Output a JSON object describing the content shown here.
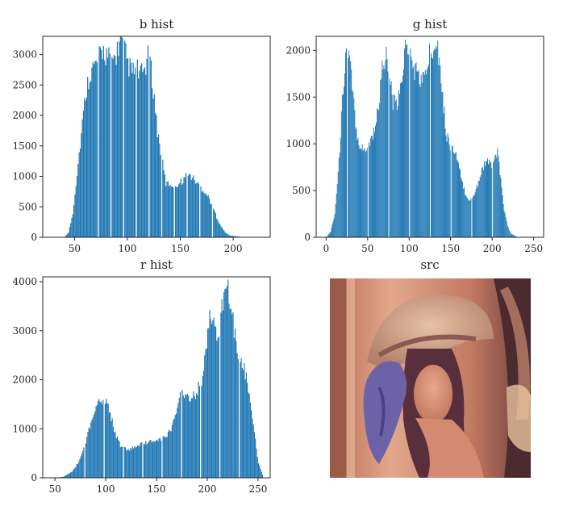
{
  "colors": {
    "bar": "#1f77b4",
    "frame": "#222222"
  },
  "chart_data": [
    {
      "type": "bar",
      "title": "b hist",
      "xlim": [
        20,
        235
      ],
      "ylim": [
        0,
        3300
      ],
      "xticks": [
        50,
        100,
        150,
        200
      ],
      "yticks": [
        0,
        500,
        1000,
        1500,
        2000,
        2500,
        3000
      ],
      "profile": [
        [
          40,
          0
        ],
        [
          44,
          80
        ],
        [
          48,
          400
        ],
        [
          52,
          1050
        ],
        [
          56,
          1700
        ],
        [
          60,
          2350
        ],
        [
          64,
          2700
        ],
        [
          68,
          2800
        ],
        [
          72,
          2900
        ],
        [
          76,
          3080
        ],
        [
          80,
          3000
        ],
        [
          84,
          2900
        ],
        [
          88,
          2950
        ],
        [
          92,
          3200
        ],
        [
          96,
          3150
        ],
        [
          100,
          2850
        ],
        [
          104,
          2700
        ],
        [
          108,
          2780
        ],
        [
          112,
          2650
        ],
        [
          116,
          2780
        ],
        [
          120,
          3000
        ],
        [
          124,
          2450
        ],
        [
          128,
          1750
        ],
        [
          132,
          1300
        ],
        [
          136,
          880
        ],
        [
          140,
          870
        ],
        [
          144,
          860
        ],
        [
          148,
          880
        ],
        [
          152,
          940
        ],
        [
          156,
          1020
        ],
        [
          160,
          1000
        ],
        [
          164,
          920
        ],
        [
          168,
          830
        ],
        [
          172,
          770
        ],
        [
          176,
          660
        ],
        [
          180,
          520
        ],
        [
          184,
          330
        ],
        [
          188,
          180
        ],
        [
          192,
          80
        ],
        [
          196,
          30
        ],
        [
          210,
          0
        ]
      ],
      "gaps": [
        72,
        84,
        96,
        108,
        120,
        132,
        144,
        156,
        168,
        180
      ]
    },
    {
      "type": "bar",
      "title": "g hist",
      "xlim": [
        -12,
        262
      ],
      "ylim": [
        0,
        2150
      ],
      "xticks": [
        0,
        50,
        100,
        150,
        200,
        250
      ],
      "yticks": [
        0,
        500,
        1000,
        1500,
        2000
      ],
      "profile": [
        [
          0,
          0
        ],
        [
          5,
          60
        ],
        [
          10,
          250
        ],
        [
          15,
          800
        ],
        [
          20,
          1600
        ],
        [
          24,
          2050
        ],
        [
          28,
          1900
        ],
        [
          32,
          1500
        ],
        [
          36,
          1150
        ],
        [
          40,
          1000
        ],
        [
          44,
          930
        ],
        [
          48,
          960
        ],
        [
          52,
          1020
        ],
        [
          56,
          1100
        ],
        [
          60,
          1250
        ],
        [
          64,
          1500
        ],
        [
          68,
          1900
        ],
        [
          72,
          1930
        ],
        [
          76,
          1720
        ],
        [
          80,
          1450
        ],
        [
          84,
          1400
        ],
        [
          88,
          1500
        ],
        [
          92,
          1800
        ],
        [
          96,
          2100
        ],
        [
          100,
          2000
        ],
        [
          104,
          1820
        ],
        [
          108,
          1780
        ],
        [
          112,
          1700
        ],
        [
          116,
          1680
        ],
        [
          120,
          1780
        ],
        [
          124,
          1950
        ],
        [
          128,
          2050
        ],
        [
          132,
          2170
        ],
        [
          136,
          1900
        ],
        [
          140,
          1500
        ],
        [
          144,
          1130
        ],
        [
          148,
          1000
        ],
        [
          152,
          950
        ],
        [
          156,
          880
        ],
        [
          160,
          720
        ],
        [
          164,
          560
        ],
        [
          168,
          450
        ],
        [
          172,
          410
        ],
        [
          176,
          420
        ],
        [
          180,
          500
        ],
        [
          184,
          640
        ],
        [
          188,
          750
        ],
        [
          192,
          810
        ],
        [
          196,
          780
        ],
        [
          200,
          800
        ],
        [
          204,
          860
        ],
        [
          206,
          910
        ],
        [
          210,
          600
        ],
        [
          214,
          300
        ],
        [
          218,
          120
        ],
        [
          222,
          40
        ],
        [
          230,
          0
        ]
      ],
      "gaps": [
        25,
        50,
        75,
        100,
        125,
        150,
        175,
        200
      ]
    },
    {
      "type": "bar",
      "title": "r hist",
      "xlim": [
        38,
        262
      ],
      "ylim": [
        0,
        4100
      ],
      "xticks": [
        50,
        100,
        150,
        200,
        250
      ],
      "yticks": [
        0,
        1000,
        2000,
        3000,
        4000
      ],
      "profile": [
        [
          50,
          0
        ],
        [
          58,
          20
        ],
        [
          62,
          70
        ],
        [
          66,
          120
        ],
        [
          70,
          230
        ],
        [
          74,
          360
        ],
        [
          78,
          600
        ],
        [
          82,
          900
        ],
        [
          86,
          1200
        ],
        [
          90,
          1450
        ],
        [
          94,
          1620
        ],
        [
          98,
          1600
        ],
        [
          102,
          1450
        ],
        [
          106,
          1150
        ],
        [
          110,
          850
        ],
        [
          114,
          650
        ],
        [
          118,
          600
        ],
        [
          122,
          570
        ],
        [
          126,
          600
        ],
        [
          130,
          640
        ],
        [
          134,
          680
        ],
        [
          138,
          700
        ],
        [
          142,
          720
        ],
        [
          146,
          750
        ],
        [
          150,
          770
        ],
        [
          154,
          800
        ],
        [
          158,
          830
        ],
        [
          162,
          920
        ],
        [
          166,
          1100
        ],
        [
          170,
          1500
        ],
        [
          174,
          1800
        ],
        [
          178,
          1700
        ],
        [
          182,
          1550
        ],
        [
          186,
          1650
        ],
        [
          190,
          1780
        ],
        [
          194,
          2000
        ],
        [
          198,
          2500
        ],
        [
          202,
          3200
        ],
        [
          206,
          3250
        ],
        [
          210,
          2900
        ],
        [
          214,
          3450
        ],
        [
          218,
          3900
        ],
        [
          222,
          3700
        ],
        [
          226,
          3000
        ],
        [
          230,
          2500
        ],
        [
          234,
          2400
        ],
        [
          238,
          2050
        ],
        [
          242,
          1500
        ],
        [
          246,
          900
        ],
        [
          250,
          300
        ],
        [
          255,
          0
        ]
      ],
      "gaps": [
        79,
        98,
        117,
        136,
        155,
        174,
        193,
        212,
        231
      ]
    }
  ],
  "image_panel": {
    "title": "src",
    "name": "lena-photo"
  }
}
